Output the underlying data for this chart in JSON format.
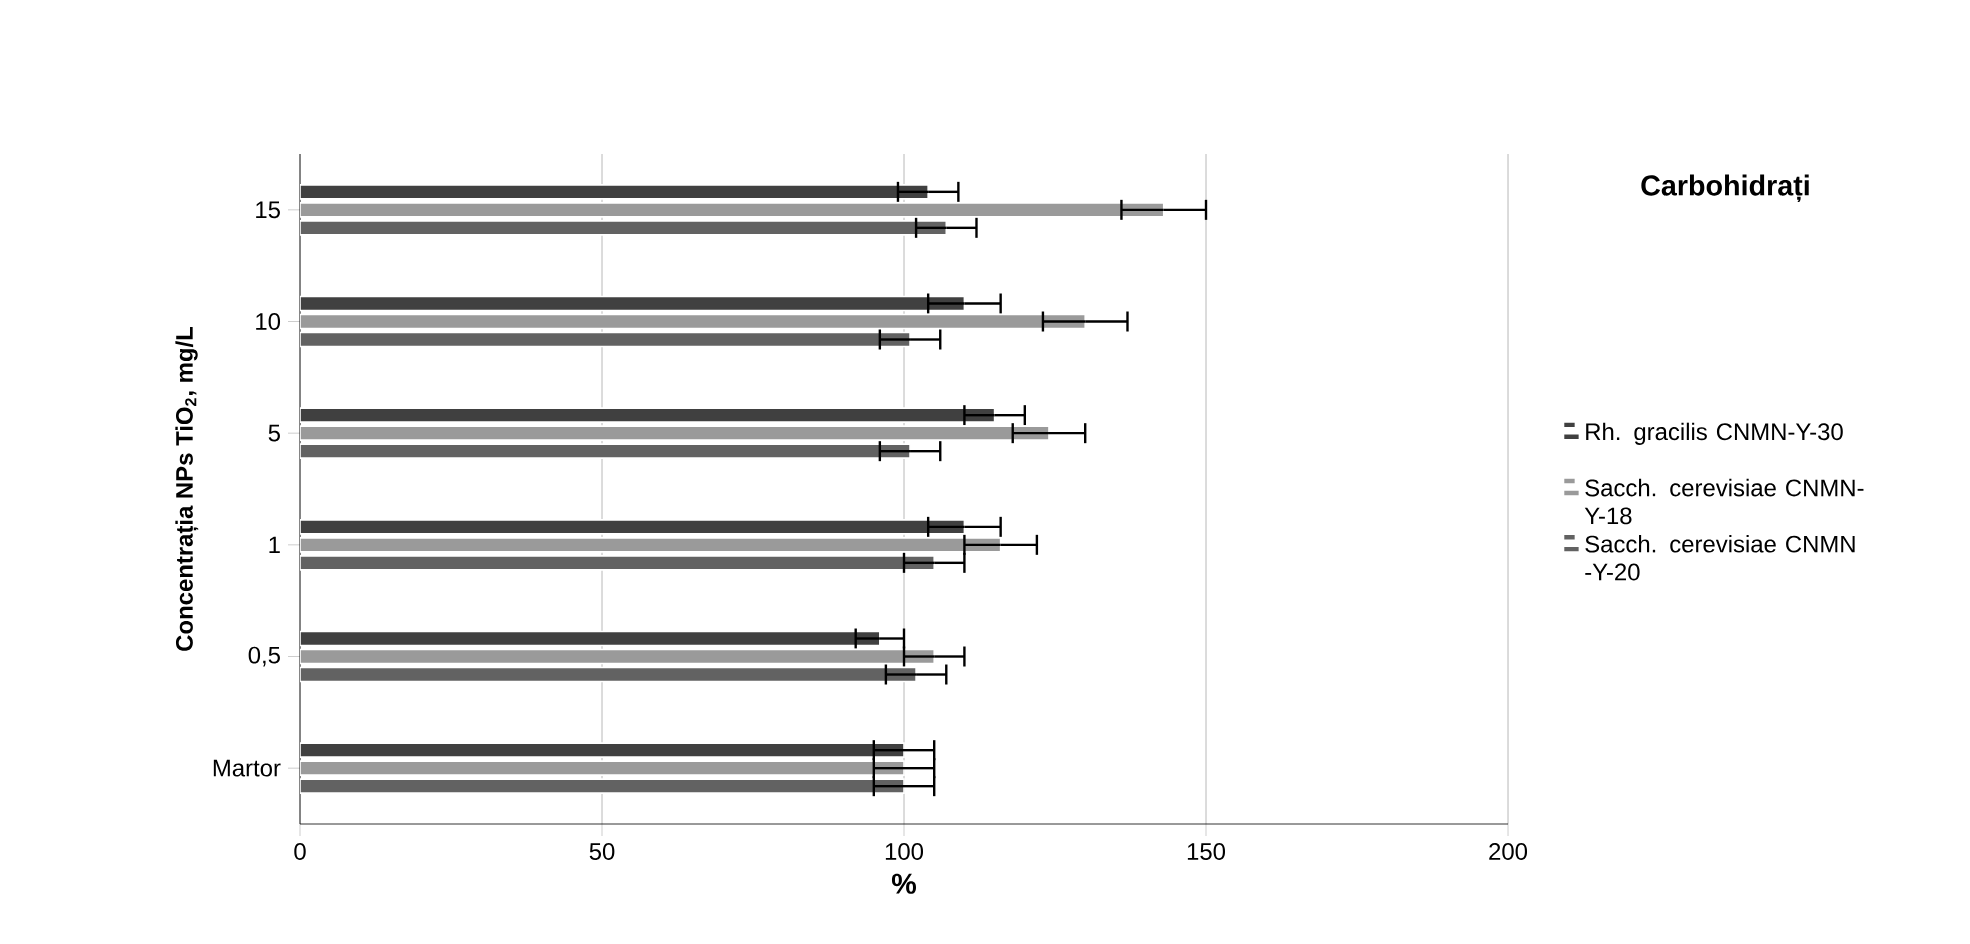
{
  "chart_data": {
    "type": "bar",
    "orientation": "horizontal",
    "title": "Carbohidrați",
    "xlabel": "%",
    "ylabel": "Concentrația NPs TiO$_{2}$, mg/L",
    "categories": [
      "15",
      "10",
      "5",
      "1",
      "0,5",
      "Martor"
    ],
    "series": [
      {
        "name": "Rh. gracilis CNMN-Y-30",
        "color": "#404040",
        "values": [
          104,
          110,
          115,
          110,
          96,
          100
        ],
        "errors": [
          5,
          6,
          5,
          6,
          4,
          5
        ]
      },
      {
        "name": "Sacch. cerevisiae CNMN-Y-18",
        "color": "#9a9a9a",
        "values": [
          143,
          130,
          124,
          116,
          105,
          100
        ],
        "errors": [
          7,
          7,
          6,
          6,
          5,
          5
        ]
      },
      {
        "name": "Sacch. cerevisiae CNMN -Y-20",
        "color": "#626262",
        "values": [
          107,
          101,
          101,
          105,
          102,
          100
        ],
        "errors": [
          5,
          5,
          5,
          5,
          5,
          5
        ]
      }
    ],
    "xlim": [
      0,
      200
    ],
    "xticks": [
      0,
      50,
      100,
      150,
      200
    ],
    "grid": "x",
    "legend": "right"
  }
}
